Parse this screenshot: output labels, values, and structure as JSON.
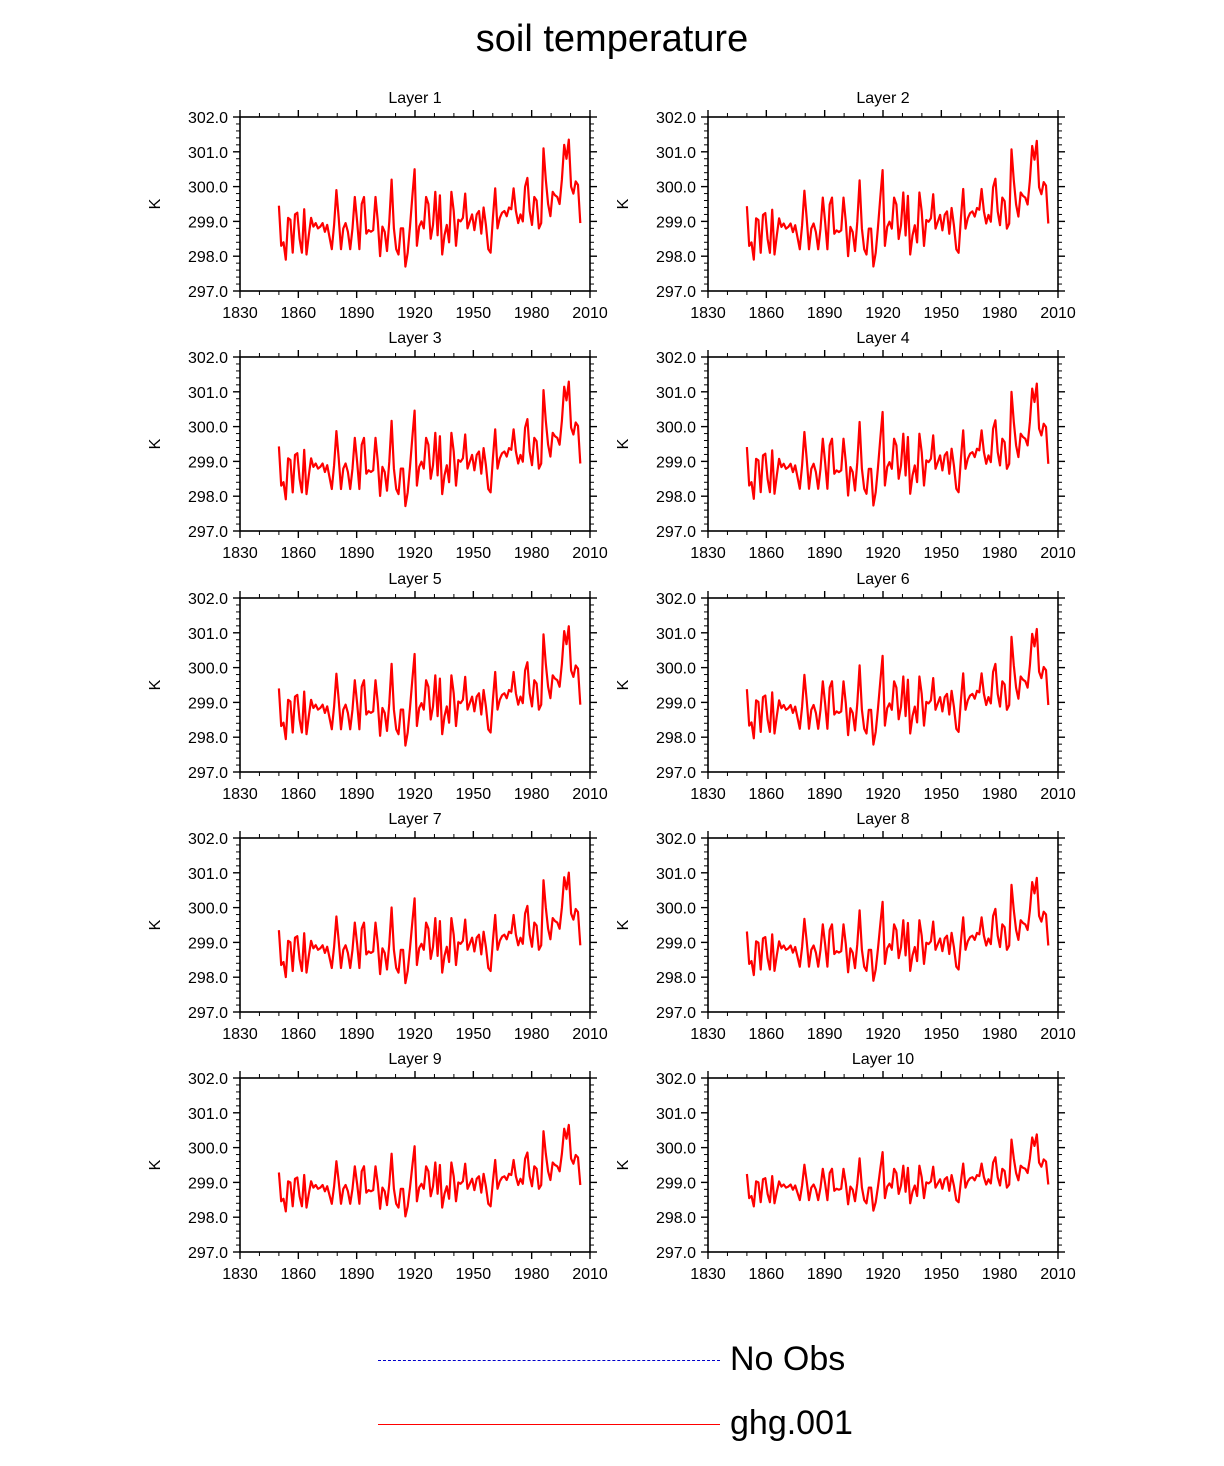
{
  "title": "soil temperature",
  "chart_data": {
    "type": "line",
    "title": "soil temperature",
    "xlabel": "",
    "ylabel": "K",
    "xlim": [
      1830,
      2010
    ],
    "ylim": [
      297.0,
      302.0
    ],
    "xticks": [
      "1830",
      "1860",
      "1890",
      "1920",
      "1950",
      "1980",
      "2010"
    ],
    "yticks": [
      "297.0",
      "298.0",
      "299.0",
      "300.0",
      "301.0",
      "302.0"
    ],
    "x_start": 1850,
    "x_end": 2005,
    "series_color": "#ff0000",
    "series_name": "ghg.001",
    "base_values": [
      299.45,
      298.3,
      298.4,
      297.9,
      299.1,
      299.05,
      298.1,
      299.2,
      299.25,
      298.5,
      298.1,
      299.35,
      298.05,
      298.6,
      299.1,
      298.85,
      298.95,
      298.8,
      298.85,
      298.95,
      298.7,
      298.9,
      298.55,
      298.2,
      298.9,
      299.9,
      299.1,
      298.2,
      298.8,
      298.95,
      298.7,
      298.2,
      298.8,
      299.7,
      299.0,
      298.2,
      299.5,
      299.7,
      298.65,
      298.75,
      298.7,
      298.75,
      299.7,
      299.0,
      298.0,
      298.85,
      298.7,
      298.15,
      299.0,
      300.2,
      298.8,
      298.2,
      298.05,
      298.8,
      298.8,
      297.7,
      298.1,
      298.85,
      299.7,
      300.5,
      298.3,
      298.85,
      299.0,
      298.8,
      299.7,
      299.5,
      298.5,
      298.9,
      299.85,
      298.6,
      299.75,
      298.05,
      298.6,
      298.9,
      298.4,
      299.85,
      299.3,
      298.3,
      299.05,
      299.0,
      299.1,
      299.8,
      298.8,
      299.0,
      299.2,
      298.75,
      299.2,
      299.3,
      298.65,
      299.4,
      298.9,
      298.2,
      298.1,
      299.1,
      299.95,
      298.8,
      299.1,
      299.25,
      299.3,
      299.15,
      299.4,
      299.35,
      299.95,
      299.3,
      298.95,
      299.2,
      299.0,
      300.0,
      300.25,
      299.3,
      298.9,
      299.7,
      299.6,
      298.8,
      298.95,
      301.1,
      300.2,
      299.5,
      299.15,
      299.85,
      299.75,
      299.7,
      299.5,
      300.2,
      301.2,
      300.8,
      301.35,
      300.0,
      299.8,
      300.15,
      300.05,
      298.95
    ],
    "panels": [
      {
        "title": "Layer 1",
        "amp": 1.0,
        "shift": 0.0
      },
      {
        "title": "Layer 2",
        "amp": 0.99,
        "shift": -0.01
      },
      {
        "title": "Layer 3",
        "amp": 0.98,
        "shift": -0.01
      },
      {
        "title": "Layer 4",
        "amp": 0.96,
        "shift": -0.02
      },
      {
        "title": "Layer 5",
        "amp": 0.94,
        "shift": -0.02
      },
      {
        "title": "Layer 6",
        "amp": 0.91,
        "shift": -0.03
      },
      {
        "title": "Layer 7",
        "amp": 0.87,
        "shift": -0.04
      },
      {
        "title": "Layer 8",
        "amp": 0.81,
        "shift": -0.05
      },
      {
        "title": "Layer 9",
        "amp": 0.72,
        "shift": -0.04
      },
      {
        "title": "Layer 10",
        "amp": 0.6,
        "shift": -0.03
      }
    ],
    "legend": [
      {
        "label": "No Obs",
        "color": "#0000cc",
        "style": "dashed"
      },
      {
        "label": "ghg.001",
        "color": "#ff0000",
        "style": "solid"
      }
    ]
  }
}
